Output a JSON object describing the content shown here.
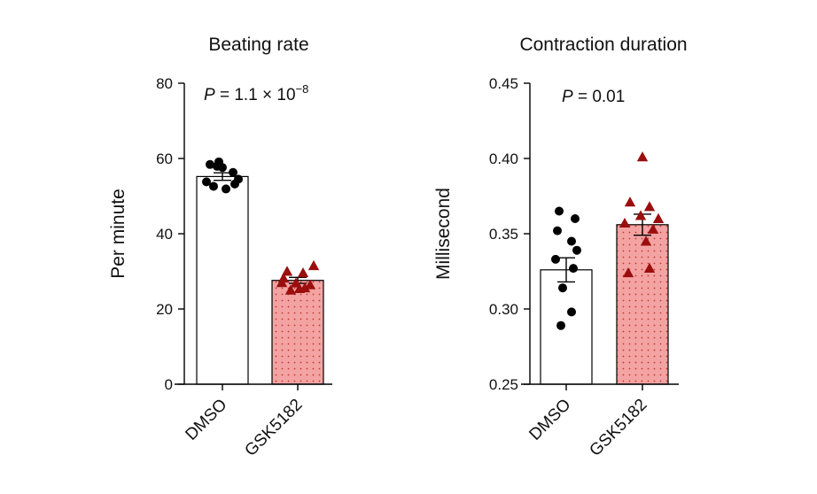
{
  "colors": {
    "axis": "#000000",
    "dmso_fill": "#ffffff",
    "gsk_fill": "#f4a3a3",
    "gsk_dots": "#c0392b",
    "gsk_marker": "#9b0e0e",
    "dmso_marker": "#000000"
  },
  "chart_data": [
    {
      "type": "bar",
      "title": "Beating rate",
      "ylabel": "Per minute",
      "xlabel": "",
      "ylim": [
        0,
        80
      ],
      "yticks": [
        0,
        20,
        40,
        60,
        80
      ],
      "yticklabels": [
        "0",
        "20",
        "40",
        "60",
        "80"
      ],
      "categories": [
        "DMSO",
        "GSK5182"
      ],
      "values": [
        55.2,
        27.6
      ],
      "errors": [
        1.0,
        0.8
      ],
      "points": [
        [
          58.4,
          59.1,
          57.6,
          56.3,
          54.5,
          53.8,
          52.6,
          51.9,
          53.2,
          57.9
        ],
        [
          30.0,
          29.6,
          31.5,
          28.2,
          26.9,
          25.6,
          25.0,
          25.4,
          26.4,
          27.0
        ]
      ],
      "annotation": {
        "prefix": "P",
        "text": " = 1.1 × 10",
        "exponent": "−8"
      }
    },
    {
      "type": "bar",
      "title": "Contraction duration",
      "ylabel": "Millisecond",
      "xlabel": "",
      "ylim": [
        0.25,
        0.45
      ],
      "yticks": [
        0.25,
        0.3,
        0.35,
        0.4,
        0.45
      ],
      "yticklabels": [
        "0.25",
        "0.30",
        "0.35",
        "0.40",
        "0.45"
      ],
      "categories": [
        "DMSO",
        "GSK5182"
      ],
      "values": [
        0.326,
        0.356
      ],
      "errors": [
        0.008,
        0.007
      ],
      "points": [
        [
          0.365,
          0.36,
          0.352,
          0.345,
          0.339,
          0.333,
          0.327,
          0.314,
          0.298,
          0.289
        ],
        [
          0.401,
          0.371,
          0.368,
          0.362,
          0.36,
          0.357,
          0.353,
          0.345,
          0.327,
          0.324
        ]
      ],
      "annotation": {
        "prefix": "P",
        "text": " = 0.01",
        "exponent": ""
      }
    }
  ]
}
